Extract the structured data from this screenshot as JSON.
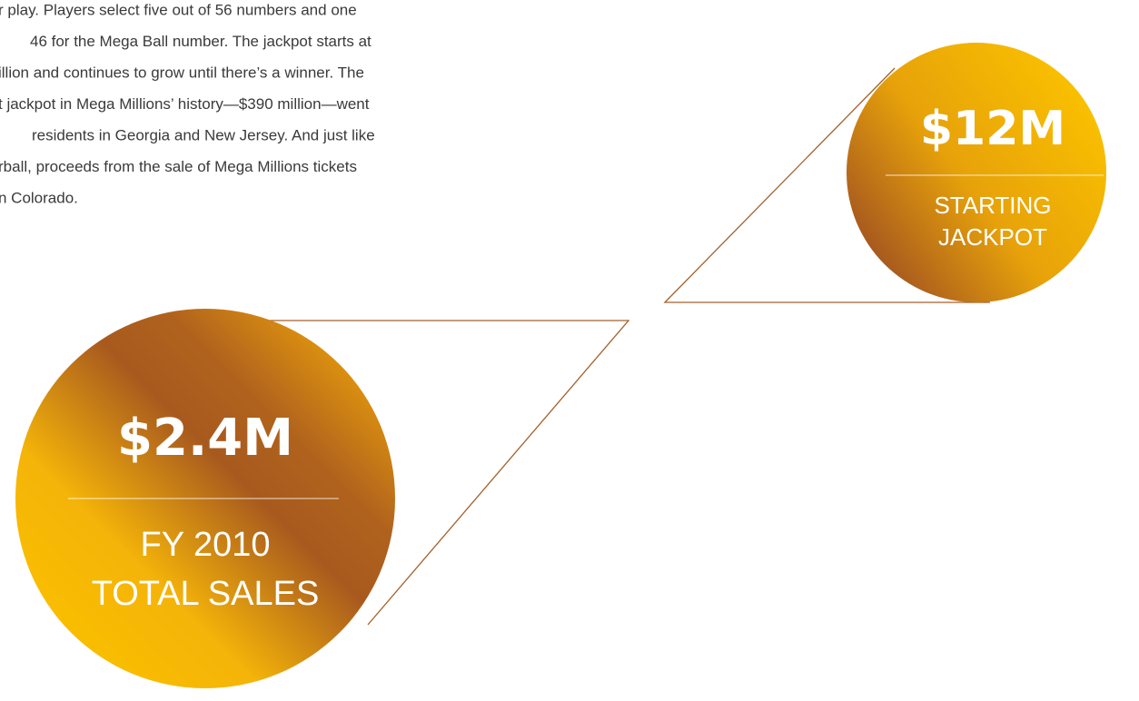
{
  "body": {
    "lines": [
      "r play. Players select five out of 56 numbers and one",
      "46 for the Mega Ball number. The jackpot starts at",
      "illion and continues to grow until there’s a winner. The",
      "t jackpot in Mega Millions’ history—$390 million—went",
      "residents in Georgia and New Jersey. And just like",
      "rball, proceeds from the sale of Mega Millions tickets",
      "n Colorado."
    ]
  },
  "callouts": [
    {
      "value": "$12M",
      "label": [
        "STARTING",
        "JACKPOT"
      ]
    },
    {
      "value": "$2.4M",
      "label": [
        "FY 2010",
        "TOTAL SALES"
      ]
    }
  ]
}
